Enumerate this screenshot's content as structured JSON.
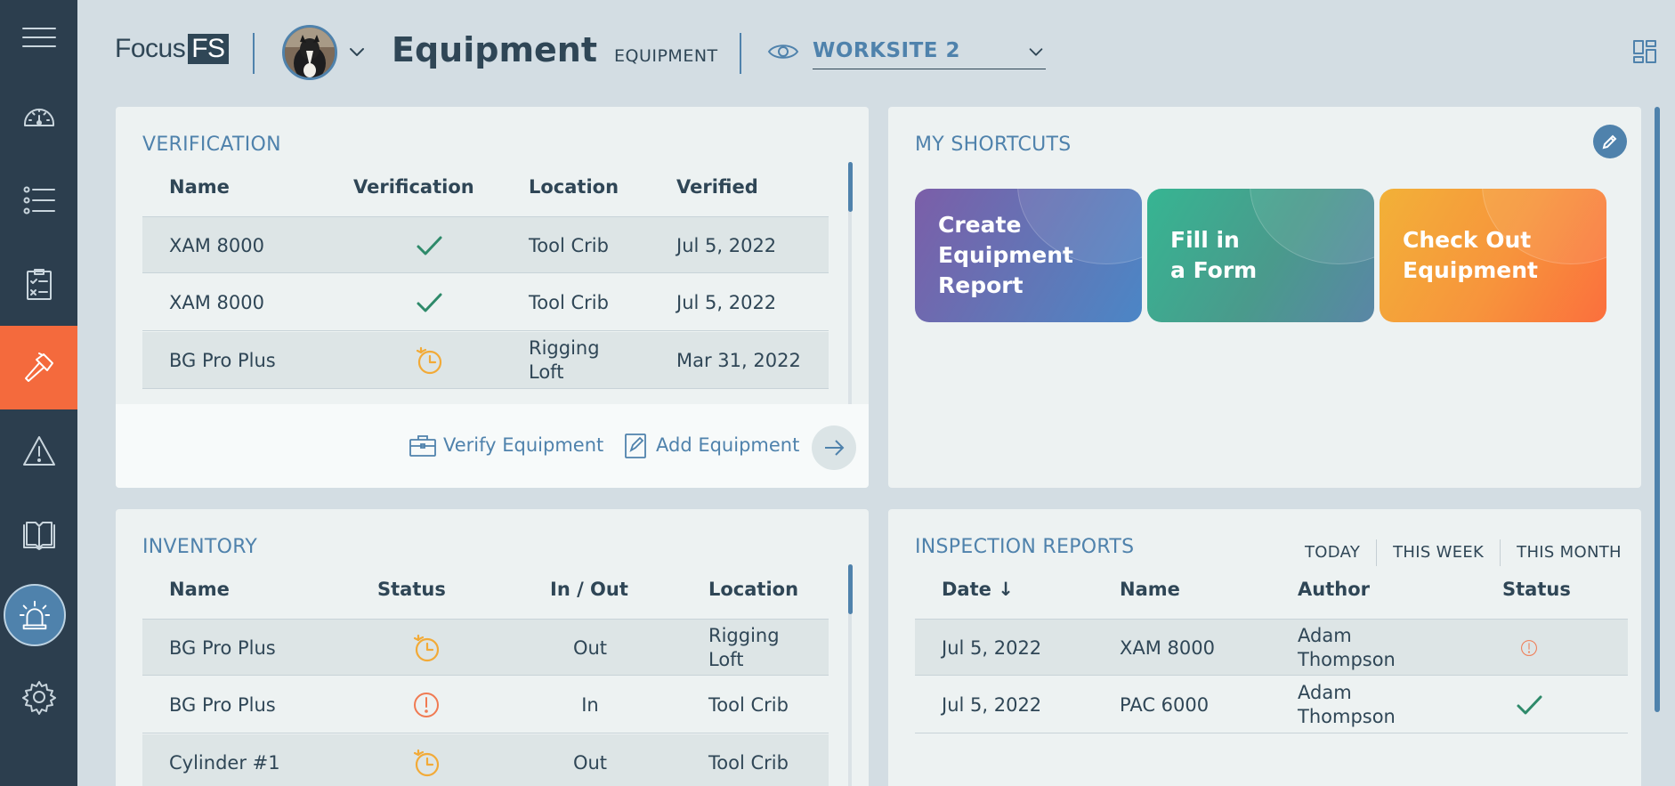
{
  "sidebar": {
    "items": [
      {
        "icon": "hamburger-menu-icon"
      },
      {
        "icon": "dashboard-gauge-icon"
      },
      {
        "icon": "list-icon"
      },
      {
        "icon": "checklist-clipboard-icon"
      },
      {
        "icon": "hammer-icon",
        "active": true
      },
      {
        "icon": "warning-triangle-icon"
      },
      {
        "icon": "book-icon"
      },
      {
        "icon": "alarm-siren-icon"
      },
      {
        "icon": "gear-icon"
      }
    ]
  },
  "header": {
    "logo_text": "Focus",
    "logo_badge": "FS",
    "page_title": "Equipment",
    "breadcrumb": "EQUIPMENT",
    "worksite": "WORKSITE 2"
  },
  "verification": {
    "title": "VERIFICATION",
    "columns": [
      "Name",
      "Verification",
      "Location",
      "Verified"
    ],
    "rows": [
      {
        "name": "XAM 8000",
        "status": "check",
        "location": "Tool Crib",
        "verified": "Jul 5, 2022"
      },
      {
        "name": "XAM 8000",
        "status": "check",
        "location": "Tool Crib",
        "verified": "Jul 5, 2022"
      },
      {
        "name": "BG Pro Plus",
        "status": "clock",
        "location": "Rigging Loft",
        "verified": "Mar 31, 2022"
      }
    ],
    "verify_label": "Verify Equipment",
    "add_label": "Add Equipment"
  },
  "shortcuts": {
    "title": "MY SHORTCUTS",
    "items": [
      {
        "label": "Create\nEquipment\nReport"
      },
      {
        "label": "Fill in\na Form"
      },
      {
        "label": "Check Out\nEquipment"
      }
    ]
  },
  "inventory": {
    "title": "INVENTORY",
    "columns": [
      "Name",
      "Status",
      "In / Out",
      "Location"
    ],
    "rows": [
      {
        "name": "BG Pro Plus",
        "status": "clock",
        "inout": "Out",
        "location": "Rigging Loft"
      },
      {
        "name": "BG Pro Plus",
        "status": "warning",
        "inout": "In",
        "location": "Tool Crib"
      },
      {
        "name": "Cylinder #1",
        "status": "clock",
        "inout": "Out",
        "location": "Tool Crib"
      }
    ]
  },
  "inspection": {
    "title": "INSPECTION REPORTS",
    "filters": [
      "TODAY",
      "THIS WEEK",
      "THIS MONTH"
    ],
    "columns": [
      "Date ↓",
      "Name",
      "Author",
      "Status"
    ],
    "rows": [
      {
        "date": "Jul 5, 2022",
        "name": "XAM 8000",
        "author": "Adam Thompson",
        "status": "warning"
      },
      {
        "date": "Jul 5, 2022",
        "name": "PAC 6000",
        "author": "Adam Thompson",
        "status": "check"
      }
    ]
  }
}
